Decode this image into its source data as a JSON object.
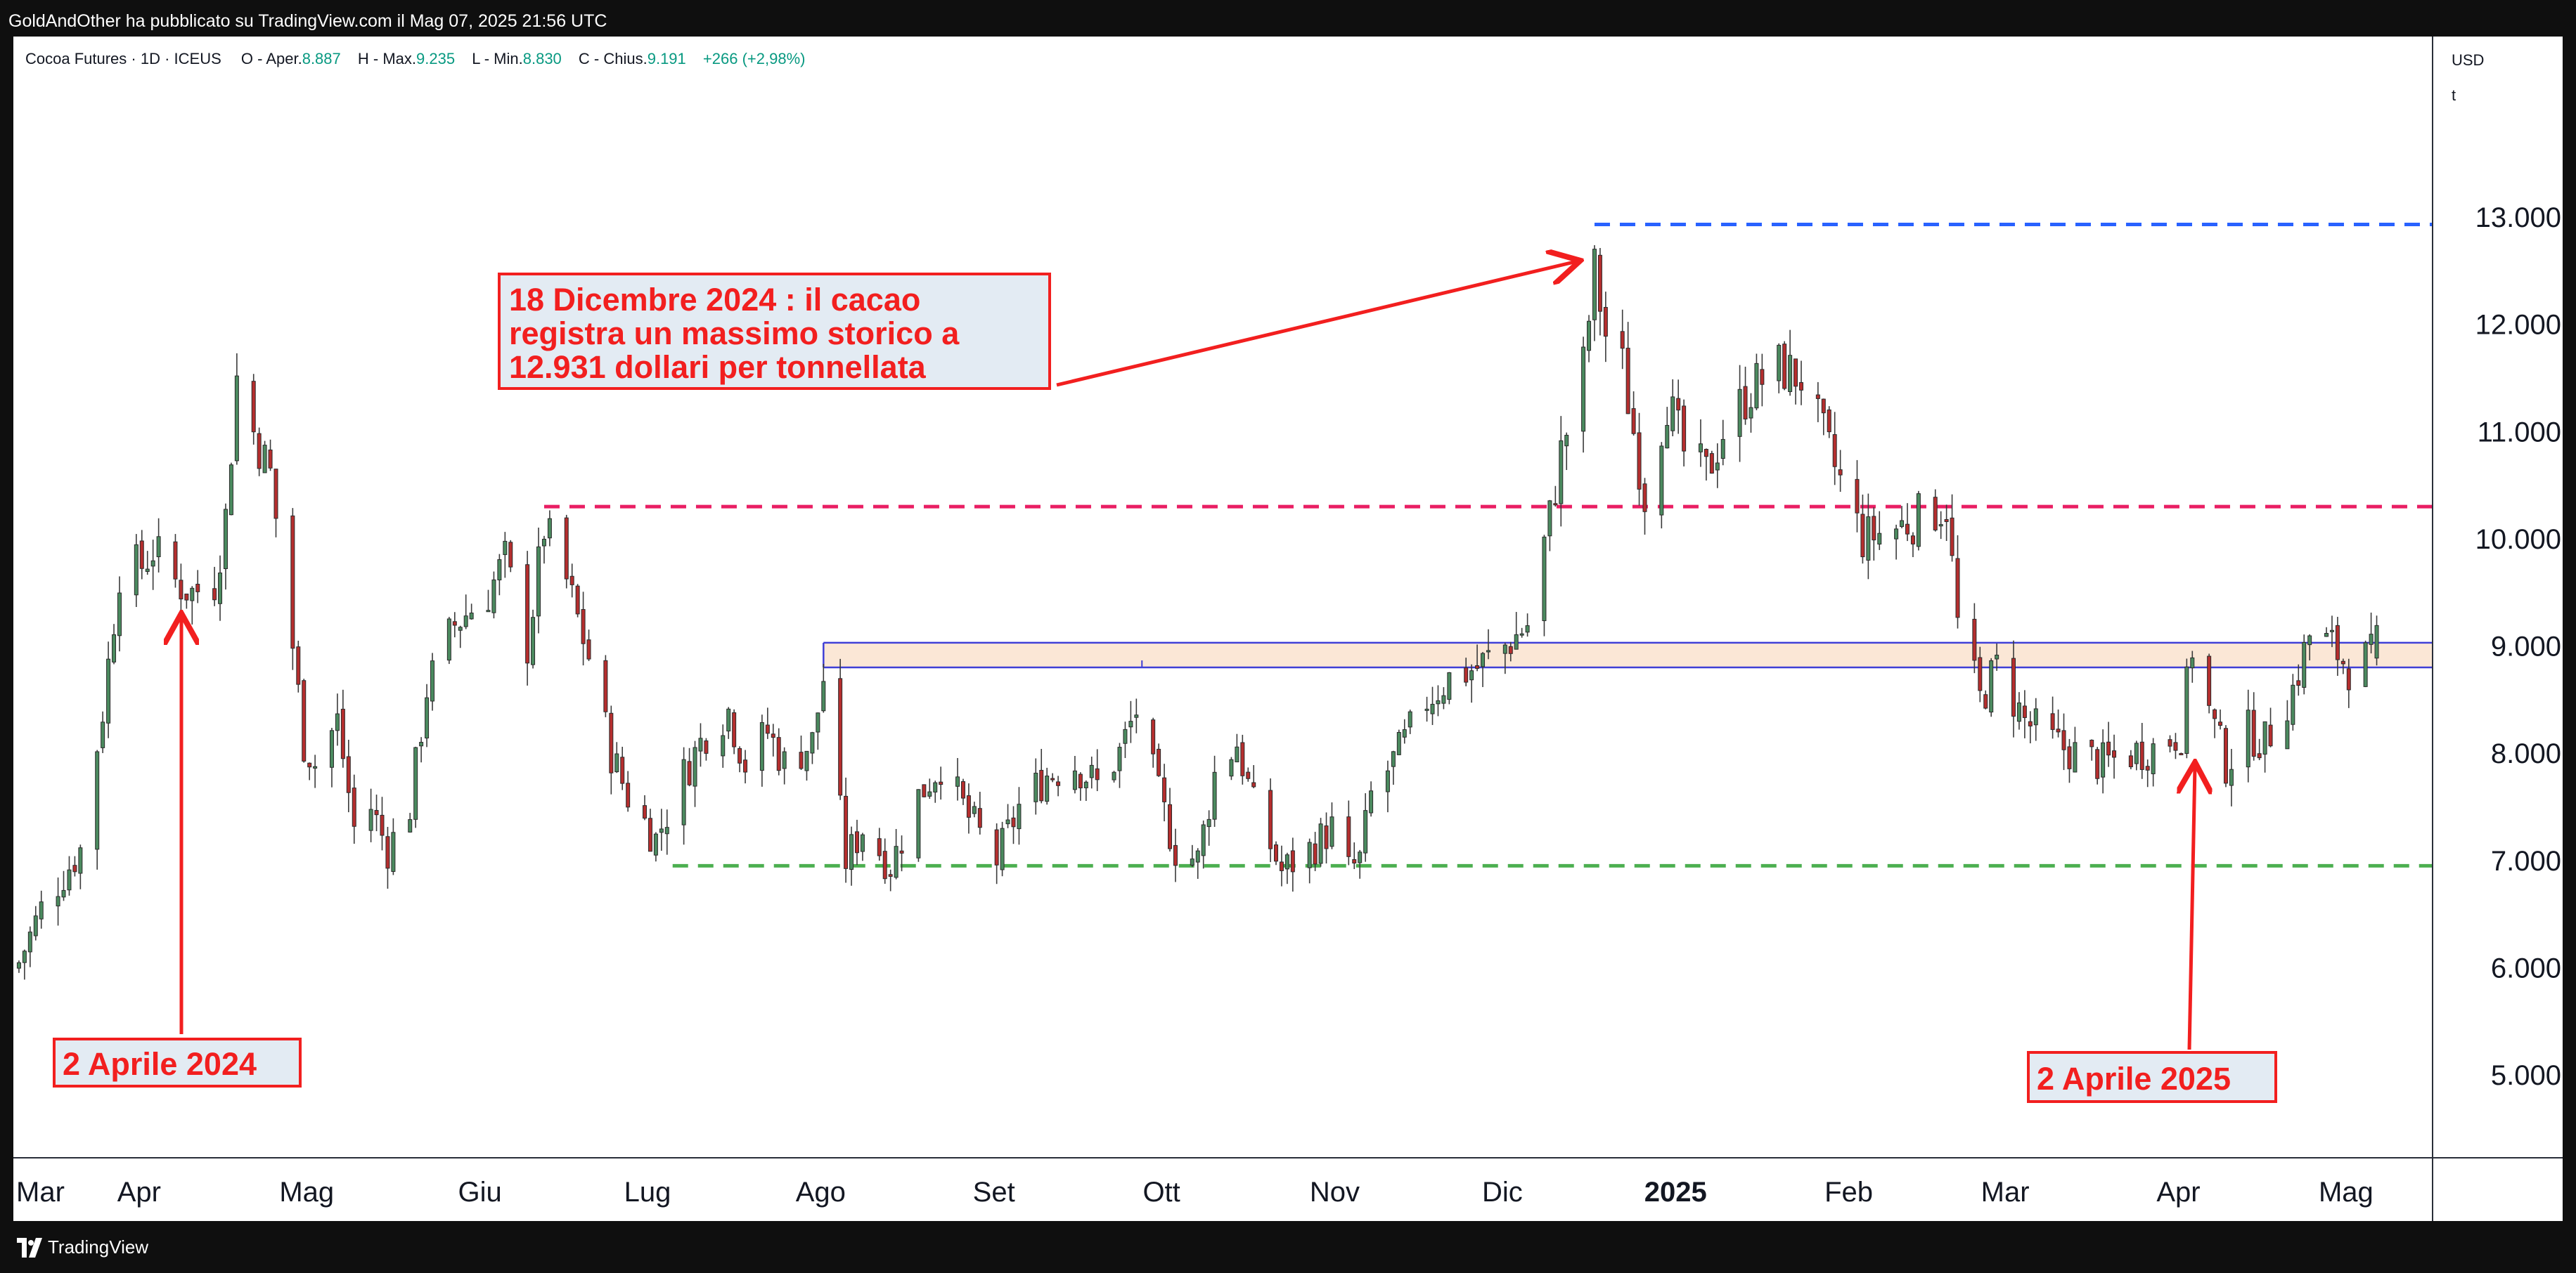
{
  "header": {
    "publisher_line": "GoldAndOther ha pubblicato su TradingView.com il Mag 07, 2025 21:56 UTC"
  },
  "legend": {
    "symbol": "Cocoa Futures · 1D · ICEUS",
    "open_label": "O - Aper.",
    "open_value": "8.887",
    "high_label": "H - Max.",
    "high_value": "9.235",
    "low_label": "L - Min.",
    "low_value": "8.830",
    "close_label": "C - Chius.",
    "close_value": "9.191",
    "change": "+266 (+2,98%)"
  },
  "price_axis": {
    "currency": "USD",
    "unit": "t"
  },
  "footer": {
    "brand": "TradingView"
  },
  "colors": {
    "up": "#4b8a5f",
    "down": "#b52e2e",
    "blue_dash": "#2962ff",
    "pink_dash": "#e91e63",
    "green_dash": "#4caf50",
    "zone_fill": "#fbe7d6",
    "zone_line": "#3f3fd6",
    "annotation": "#f21f1f",
    "annotation_box": "#e3ebf3"
  },
  "chart_data": {
    "type": "candlestick",
    "symbol": "Cocoa Futures",
    "interval": "1D",
    "y_unit": "USD/t",
    "ylim": [
      4300,
      14300
    ],
    "y_ticks": [
      5000,
      6000,
      7000,
      8000,
      9000,
      10000,
      11000,
      12000,
      13000
    ],
    "y_tick_labels": [
      "5.000",
      "6.000",
      "7.000",
      "8.000",
      "9.000",
      "10.000",
      "11.000",
      "12.000",
      "13.000"
    ],
    "x_range": [
      "2024-03-10",
      "2025-05-17"
    ],
    "x_ticks": [
      {
        "date": "2024-03-10",
        "label": "Mar",
        "bold": false
      },
      {
        "date": "2024-04-01",
        "label": "Apr",
        "bold": false
      },
      {
        "date": "2024-05-01",
        "label": "Mag",
        "bold": false
      },
      {
        "date": "2024-06-01",
        "label": "Giu",
        "bold": false
      },
      {
        "date": "2024-07-01",
        "label": "Lug",
        "bold": false
      },
      {
        "date": "2024-08-01",
        "label": "Ago",
        "bold": false
      },
      {
        "date": "2024-09-01",
        "label": "Set",
        "bold": false
      },
      {
        "date": "2024-10-01",
        "label": "Ott",
        "bold": false
      },
      {
        "date": "2024-11-01",
        "label": "Nov",
        "bold": false
      },
      {
        "date": "2024-12-01",
        "label": "Dic",
        "bold": false
      },
      {
        "date": "2025-01-01",
        "label": "2025",
        "bold": true
      },
      {
        "date": "2025-02-01",
        "label": "Feb",
        "bold": false
      },
      {
        "date": "2025-03-01",
        "label": "Mar",
        "bold": false
      },
      {
        "date": "2025-04-01",
        "label": "Apr",
        "bold": false
      },
      {
        "date": "2025-05-01",
        "label": "Mag",
        "bold": false
      }
    ],
    "price_path": [
      [
        "2024-03-11",
        6050
      ],
      [
        "2024-03-15",
        6550
      ],
      [
        "2024-03-22",
        7100
      ],
      [
        "2024-03-26",
        8400
      ],
      [
        "2024-03-29",
        9700
      ],
      [
        "2024-04-02",
        9750
      ],
      [
        "2024-04-04",
        9900
      ],
      [
        "2024-04-08",
        9600
      ],
      [
        "2024-04-11",
        9500
      ],
      [
        "2024-04-15",
        9600
      ],
      [
        "2024-04-17",
        10200
      ],
      [
        "2024-04-19",
        11500
      ],
      [
        "2024-04-22",
        11000
      ],
      [
        "2024-04-25",
        10600
      ],
      [
        "2024-04-29",
        9000
      ],
      [
        "2024-05-01",
        8100
      ],
      [
        "2024-05-03",
        7900
      ],
      [
        "2024-05-07",
        8300
      ],
      [
        "2024-05-10",
        7300
      ],
      [
        "2024-05-13",
        7500
      ],
      [
        "2024-05-16",
        7100
      ],
      [
        "2024-05-20",
        7500
      ],
      [
        "2024-05-23",
        8600
      ],
      [
        "2024-05-28",
        9200
      ],
      [
        "2024-06-03",
        9500
      ],
      [
        "2024-06-06",
        9800
      ],
      [
        "2024-06-10",
        9000
      ],
      [
        "2024-06-13",
        10100
      ],
      [
        "2024-06-17",
        9600
      ],
      [
        "2024-06-21",
        8900
      ],
      [
        "2024-06-25",
        8000
      ],
      [
        "2024-06-28",
        7600
      ],
      [
        "2024-07-03",
        7200
      ],
      [
        "2024-07-08",
        7800
      ],
      [
        "2024-07-12",
        8200
      ],
      [
        "2024-07-16",
        8400
      ],
      [
        "2024-07-19",
        7900
      ],
      [
        "2024-07-23",
        8200
      ],
      [
        "2024-07-26",
        7900
      ],
      [
        "2024-07-31",
        8100
      ],
      [
        "2024-08-02",
        8700
      ],
      [
        "2024-08-06",
        7000
      ],
      [
        "2024-08-09",
        7300
      ],
      [
        "2024-08-14",
        6950
      ],
      [
        "2024-08-19",
        7600
      ],
      [
        "2024-08-23",
        7900
      ],
      [
        "2024-08-28",
        7400
      ],
      [
        "2024-09-02",
        7000
      ],
      [
        "2024-09-06",
        7500
      ],
      [
        "2024-09-11",
        7800
      ],
      [
        "2024-09-16",
        7900
      ],
      [
        "2024-09-20",
        7700
      ],
      [
        "2024-09-24",
        8000
      ],
      [
        "2024-09-27",
        8400
      ],
      [
        "2024-10-01",
        7600
      ],
      [
        "2024-10-04",
        7100
      ],
      [
        "2024-10-08",
        7000
      ],
      [
        "2024-10-11",
        7800
      ],
      [
        "2024-10-15",
        8100
      ],
      [
        "2024-10-18",
        7500
      ],
      [
        "2024-10-23",
        6900
      ],
      [
        "2024-10-28",
        7100
      ],
      [
        "2024-11-01",
        7300
      ],
      [
        "2024-11-04",
        6900
      ],
      [
        "2024-11-06",
        7000
      ],
      [
        "2024-11-08",
        7600
      ],
      [
        "2024-11-13",
        8000
      ],
      [
        "2024-11-18",
        8500
      ],
      [
        "2024-11-22",
        8700
      ],
      [
        "2024-11-27",
        8800
      ],
      [
        "2024-12-02",
        9000
      ],
      [
        "2024-12-06",
        9200
      ],
      [
        "2024-12-10",
        10200
      ],
      [
        "2024-12-12",
        10800
      ],
      [
        "2024-12-16",
        11600
      ],
      [
        "2024-12-18",
        12500
      ],
      [
        "2024-12-20",
        11900
      ],
      [
        "2024-12-23",
        11600
      ],
      [
        "2024-12-27",
        10400
      ],
      [
        "2024-12-31",
        11300
      ],
      [
        "2025-01-03",
        10800
      ],
      [
        "2025-01-07",
        10600
      ],
      [
        "2025-01-10",
        11000
      ],
      [
        "2025-01-15",
        11400
      ],
      [
        "2025-01-20",
        11600
      ],
      [
        "2025-01-24",
        11500
      ],
      [
        "2025-01-29",
        10800
      ],
      [
        "2025-02-04",
        10000
      ],
      [
        "2025-02-10",
        10100
      ],
      [
        "2025-02-14",
        10200
      ],
      [
        "2025-02-19",
        10300
      ],
      [
        "2025-02-21",
        9200
      ],
      [
        "2025-02-25",
        8500
      ],
      [
        "2025-02-28",
        8800
      ],
      [
        "2025-03-05",
        8300
      ],
      [
        "2025-03-10",
        8100
      ],
      [
        "2025-03-14",
        8000
      ],
      [
        "2025-03-19",
        7900
      ],
      [
        "2025-03-24",
        8000
      ],
      [
        "2025-03-28",
        8050
      ],
      [
        "2025-04-02",
        8200
      ],
      [
        "2025-04-04",
        9000
      ],
      [
        "2025-04-07",
        8400
      ],
      [
        "2025-04-10",
        7900
      ],
      [
        "2025-04-14",
        8200
      ],
      [
        "2025-04-17",
        8100
      ],
      [
        "2025-04-22",
        8600
      ],
      [
        "2025-04-25",
        9100
      ],
      [
        "2025-04-29",
        9000
      ],
      [
        "2025-05-02",
        8800
      ],
      [
        "2025-05-06",
        8900
      ],
      [
        "2025-05-07",
        9191
      ]
    ],
    "levels": [
      {
        "style": "dashed",
        "color": "blue",
        "value": 12931,
        "from": "2024-12-18",
        "to": "2025-05-17"
      },
      {
        "style": "dashed",
        "color": "pink",
        "value": 10300,
        "from": "2024-06-13",
        "to": "2025-05-17"
      },
      {
        "style": "dashed",
        "color": "green",
        "value": 6950,
        "from": "2024-07-06",
        "to": "2025-05-17"
      }
    ],
    "zone": {
      "from": "2024-08-02",
      "to": "2025-05-17",
      "low": 8800,
      "high": 9030,
      "vertical_mark_date": "2024-09-28"
    },
    "annotations": [
      {
        "lines": [
          "18 Dicembre 2024 : il cacao",
          "registra un massimo storico a",
          "12.931 dollari per tonnellata"
        ],
        "date": "2024-12-18",
        "value": 12931
      },
      {
        "lines": [
          "2 Aprile 2024"
        ],
        "date": "2024-04-02",
        "value": 9750
      },
      {
        "lines": [
          "2 Aprile 2025"
        ],
        "date": "2025-04-02",
        "value": 8200
      }
    ]
  }
}
